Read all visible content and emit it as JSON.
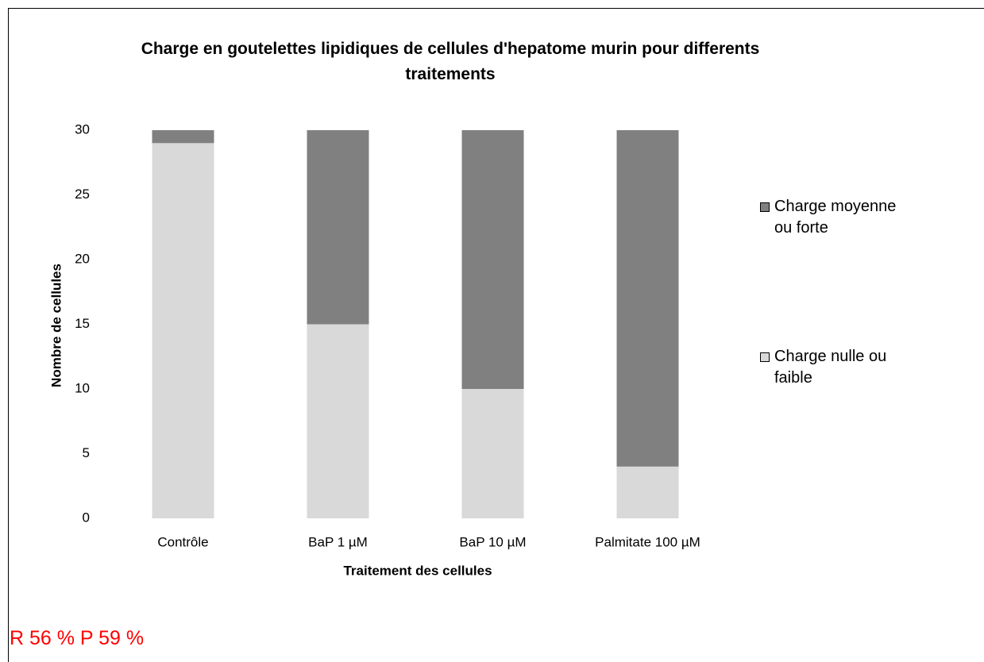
{
  "chart_data": {
    "type": "stacked_bar",
    "title": "Charge en goutelettes lipidiques de cellules d'hepatome murin pour differents traitements",
    "x_label": "Traitement des cellules",
    "y_label": "Nombre de cellules",
    "categories": [
      "Contrôle",
      "BaP 1 µM",
      "BaP 10 µM",
      "Palmitate 100 µM"
    ],
    "series": [
      {
        "name": "Charge nulle ou faible",
        "color": "#d9d9d9",
        "values": [
          29,
          15,
          10,
          4
        ]
      },
      {
        "name": "Charge moyenne ou forte",
        "color": "#808080",
        "values": [
          1,
          15,
          20,
          26
        ]
      }
    ],
    "ylim": [
      0,
      30
    ],
    "yticks": [
      0,
      5,
      10,
      15,
      20,
      25,
      30
    ],
    "annotation": "R 56 %  P 59 %"
  }
}
